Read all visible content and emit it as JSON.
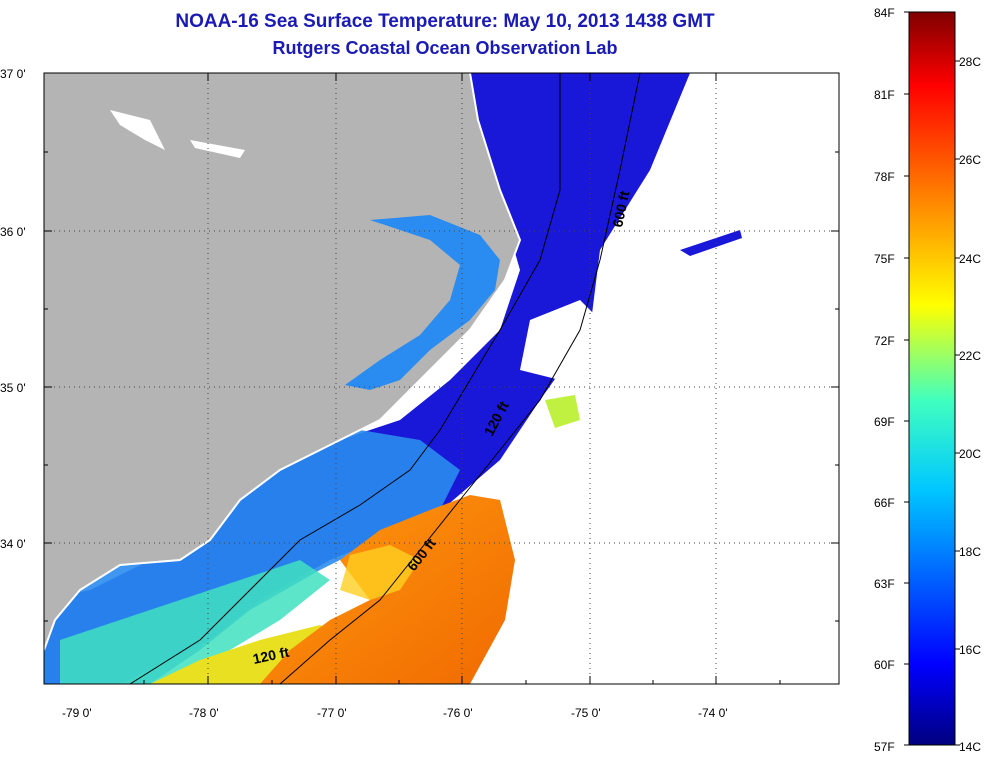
{
  "header": {
    "title": "NOAA-16 Sea Surface Temperature:  May 10, 2013 1438 GMT",
    "subtitle": "Rutgers Coastal Ocean Observation Lab"
  },
  "map": {
    "lat_labels": [
      "37 0'",
      "36 0'",
      "35 0'",
      "34 0'"
    ],
    "lon_labels": [
      "-79 0'",
      "-78 0'",
      "-77 0'",
      "-76 0'",
      "-75 0'",
      "-74 0'"
    ],
    "contours": {
      "c120_north": "120 ft",
      "c600_north": "600 ft",
      "c600_south": "600 ft",
      "c120_south": "120 ft"
    }
  },
  "colorbar": {
    "fahrenheit": [
      "84F",
      "81F",
      "78F",
      "75F",
      "72F",
      "69F",
      "66F",
      "63F",
      "60F",
      "57F"
    ],
    "celsius": [
      "28C",
      "26C",
      "24C",
      "22C",
      "20C",
      "18C",
      "16C",
      "14C"
    ],
    "range_c": [
      14,
      29
    ],
    "colors": [
      "#00007f",
      "#0000ff",
      "#007fff",
      "#00ffff",
      "#7fff7f",
      "#ffff00",
      "#ff7f00",
      "#ff0000",
      "#7f0000"
    ]
  },
  "colors": {
    "land": "#b4b4b4",
    "cold_water": "#1010d0",
    "warm_water": "#f08010",
    "title": "#1a1ab4"
  }
}
